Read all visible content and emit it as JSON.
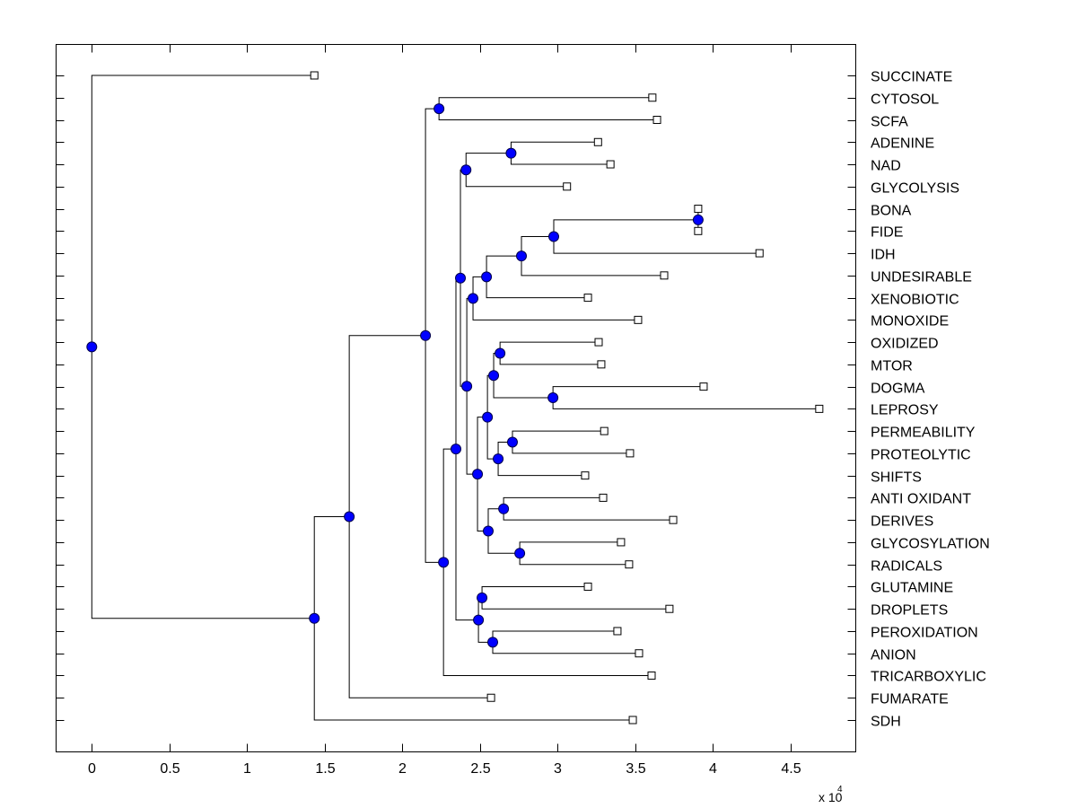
{
  "chart_data": {
    "type": "dendrogram",
    "title": "",
    "xlabel": "",
    "ylabel": "",
    "x_multiplier_label": "x 10",
    "x_multiplier_exponent": "4",
    "xlim": [
      -0.23,
      4.92
    ],
    "xticks": [
      0,
      0.5,
      1,
      1.5,
      2,
      2.5,
      3,
      3.5,
      4,
      4.5
    ],
    "xtick_labels": [
      "0",
      "0.5",
      "1",
      "1.5",
      "2",
      "2.5",
      "3",
      "3.5",
      "4",
      "4.5"
    ],
    "grid": false,
    "colors": {
      "node_fill": "#0000ff",
      "node_stroke": "#00004d",
      "leaf_fill": "#ffffff",
      "line": "#000000"
    },
    "leaves": [
      "SUCCINATE",
      "CYTOSOL",
      "SCFA",
      "ADENINE",
      "NAD",
      "GLYCOLYSIS",
      "BONA",
      "FIDE",
      "IDH",
      "UNDESIRABLE",
      "XENOBIOTIC",
      "MONOXIDE",
      "OXIDIZED",
      "MTOR",
      "DOGMA",
      "LEPROSY",
      "PERMEABILITY",
      "PROTEOLYTIC",
      "SHIFTS",
      "ANTI OXIDANT",
      "DERIVES",
      "GLYCOSYLATION",
      "RADICALS",
      "GLUTAMINE",
      "DROPLETS",
      "PEROXIDATION",
      "ANION",
      "TRICARBOXYLIC",
      "FUMARATE",
      "SDH"
    ],
    "tree": {
      "x": 0,
      "children": [
        {
          "leaf": 0,
          "x": 1.433
        },
        {
          "x": 1.433,
          "children": [
            {
              "x": 1.658,
              "children": [
                {
                  "x": 2.149,
                  "children": [
                    {
                      "x": 2.236,
                      "children": [
                        {
                          "leaf": 1,
                          "x": 3.61
                        },
                        {
                          "leaf": 2,
                          "x": 3.64
                        }
                      ]
                    },
                    {
                      "x": 2.265,
                      "children": [
                        {
                          "x": 2.345,
                          "children": [
                            {
                              "x": 2.374,
                              "children": [
                                {
                                  "x": 2.41,
                                  "children": [
                                    {
                                      "x": 2.7,
                                      "children": [
                                        {
                                          "leaf": 3,
                                          "x": 3.26
                                        },
                                        {
                                          "leaf": 4,
                                          "x": 3.34
                                        }
                                      ]
                                    },
                                    {
                                      "leaf": 5,
                                      "x": 3.06
                                    }
                                  ]
                                },
                                {
                                  "x": 2.415,
                                  "children": [
                                    {
                                      "x": 2.455,
                                      "children": [
                                        {
                                          "x": 2.542,
                                          "children": [
                                            {
                                              "x": 2.767,
                                              "children": [
                                                {
                                                  "x": 2.975,
                                                  "children": [
                                                    {
                                                      "x": 3.905,
                                                      "children": [
                                                        {
                                                          "leaf": 6,
                                                          "x": 3.905
                                                        },
                                                        {
                                                          "leaf": 7,
                                                          "x": 3.905
                                                        }
                                                      ]
                                                    },
                                                    {
                                                      "leaf": 8,
                                                      "x": 4.3
                                                    }
                                                  ]
                                                },
                                                {
                                                  "leaf": 9,
                                                  "x": 3.686
                                                }
                                              ]
                                            },
                                            {
                                              "leaf": 10,
                                              "x": 3.195
                                            }
                                          ]
                                        },
                                        {
                                          "leaf": 11,
                                          "x": 3.518
                                        }
                                      ]
                                    },
                                    {
                                      "x": 2.484,
                                      "children": [
                                        {
                                          "x": 2.548,
                                          "children": [
                                            {
                                              "x": 2.588,
                                              "children": [
                                                {
                                                  "x": 2.629,
                                                  "children": [
                                                    {
                                                      "leaf": 12,
                                                      "x": 3.264
                                                    },
                                                    {
                                                      "leaf": 13,
                                                      "x": 3.281
                                                    }
                                                  ]
                                                },
                                                {
                                                  "x": 2.97,
                                                  "children": [
                                                    {
                                                      "leaf": 14,
                                                      "x": 3.94
                                                    },
                                                    {
                                                      "leaf": 15,
                                                      "x": 4.685
                                                    }
                                                  ]
                                                }
                                              ]
                                            },
                                            {
                                              "x": 2.617,
                                              "children": [
                                                {
                                                  "x": 2.709,
                                                  "children": [
                                                    {
                                                      "leaf": 16,
                                                      "x": 3.3
                                                    },
                                                    {
                                                      "leaf": 17,
                                                      "x": 3.466
                                                    }
                                                  ]
                                                },
                                                {
                                                  "leaf": 18,
                                                  "x": 3.177
                                                }
                                              ]
                                            }
                                          ]
                                        },
                                        {
                                          "x": 2.553,
                                          "children": [
                                            {
                                              "x": 2.652,
                                              "children": [
                                                {
                                                  "leaf": 19,
                                                  "x": 3.293
                                                },
                                                {
                                                  "leaf": 20,
                                                  "x": 3.744
                                                }
                                              ]
                                            },
                                            {
                                              "x": 2.756,
                                              "children": [
                                                {
                                                  "leaf": 21,
                                                  "x": 3.408
                                                },
                                                {
                                                  "leaf": 22,
                                                  "x": 3.46
                                                }
                                              ]
                                            }
                                          ]
                                        }
                                      ]
                                    }
                                  ]
                                }
                              ]
                            },
                            {
                              "x": 2.49,
                              "children": [
                                {
                                  "x": 2.513,
                                  "children": [
                                    {
                                      "leaf": 23,
                                      "x": 3.195
                                    },
                                    {
                                      "leaf": 24,
                                      "x": 3.72
                                    }
                                  ]
                                },
                                {
                                  "x": 2.582,
                                  "children": [
                                    {
                                      "leaf": 25,
                                      "x": 3.385
                                    },
                                    {
                                      "leaf": 26,
                                      "x": 3.524
                                    }
                                  ]
                                }
                              ]
                            }
                          ]
                        },
                        {
                          "leaf": 27,
                          "x": 3.605
                        }
                      ]
                    }
                  ]
                },
                {
                  "leaf": 28,
                  "x": 2.571
                }
              ]
            },
            {
              "leaf": 29,
              "x": 3.484
            }
          ]
        }
      ]
    }
  }
}
